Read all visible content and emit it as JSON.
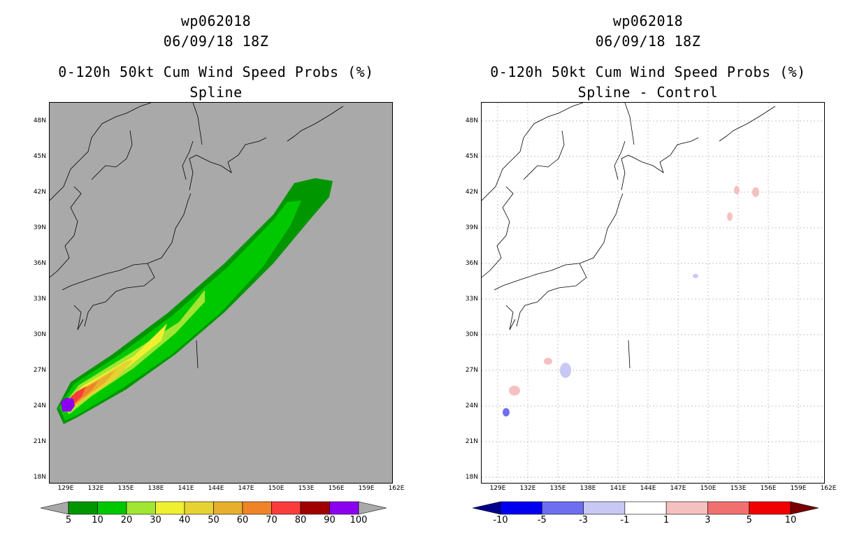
{
  "panels": [
    {
      "storm_id": "wp062018",
      "datetime": "06/09/18 18Z",
      "product": "0-120h 50kt Cum Wind Speed Probs (%)",
      "subtitle": "Spline",
      "background": "#a9a9a9",
      "colorbar": {
        "labels": [
          "5",
          "10",
          "20",
          "30",
          "40",
          "50",
          "60",
          "70",
          "80",
          "90",
          "100"
        ],
        "colors": [
          "#a9a9a9",
          "#009600",
          "#00c800",
          "#a0e632",
          "#f0f032",
          "#e6d232",
          "#e6af2d",
          "#f08228",
          "#fa3c3c",
          "#a00000",
          "#8c00f0",
          "#a9a9a9"
        ]
      }
    },
    {
      "storm_id": "wp062018",
      "datetime": "06/09/18 18Z",
      "product": "0-120h 50kt Cum Wind Speed Probs (%)",
      "subtitle": "Spline - Control",
      "background": "#ffffff",
      "colorbar": {
        "labels": [
          "-10",
          "-5",
          "-3",
          "-1",
          "1",
          "3",
          "5",
          "10"
        ],
        "colors": [
          "#00008c",
          "#0000f0",
          "#6e6ef0",
          "#c8c8f5",
          "#ffffff",
          "#f5c0c0",
          "#f07070",
          "#f00000",
          "#780000"
        ]
      }
    }
  ],
  "axes": {
    "lat_labels": [
      "48N",
      "45N",
      "42N",
      "39N",
      "36N",
      "33N",
      "30N",
      "27N",
      "24N",
      "21N",
      "18N"
    ],
    "lon_labels": [
      "129E",
      "132E",
      "135E",
      "138E",
      "141E",
      "144E",
      "147E",
      "150E",
      "153E",
      "156E",
      "159E",
      "162E"
    ]
  },
  "icons": {
    "coastline": "coastline-map",
    "swath": "probability-swath"
  }
}
